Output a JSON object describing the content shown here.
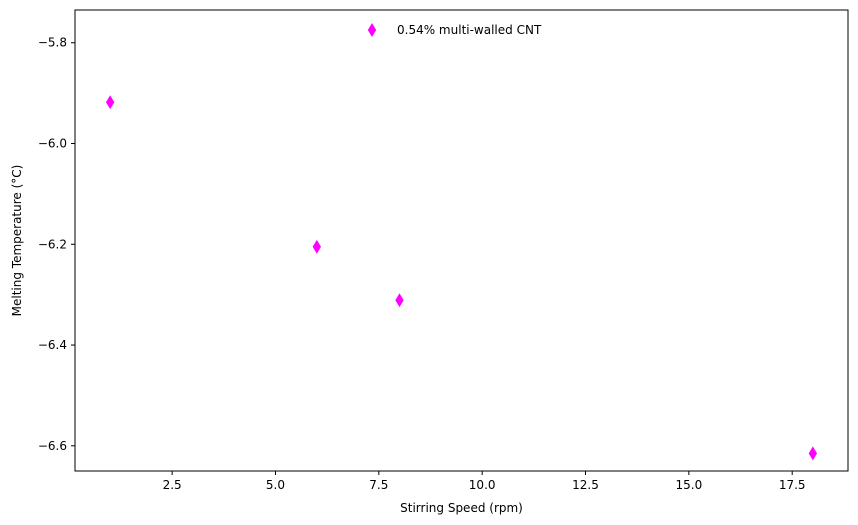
{
  "chart_data": {
    "type": "scatter",
    "title": "",
    "xlabel": "Stirring Speed (rpm)",
    "ylabel": "Melting Temperature (°C)",
    "xlim": [
      0.15,
      18.85
    ],
    "ylim": [
      -6.65,
      -5.735
    ],
    "xticks": [
      2.5,
      5.0,
      7.5,
      10.0,
      12.5,
      15.0,
      17.5
    ],
    "xtick_labels": [
      "2.5",
      "5.0",
      "7.5",
      "10.0",
      "12.5",
      "15.0",
      "17.5"
    ],
    "yticks": [
      -6.6,
      -6.4,
      -6.2,
      -6.0,
      -5.8
    ],
    "ytick_labels": [
      "−6.6",
      "−6.4",
      "−6.2",
      "−6.0",
      "−5.8"
    ],
    "grid": false,
    "legend_position": "top-center",
    "series": [
      {
        "name": "0.54% multi-walled CNT",
        "marker": "thin-diamond",
        "color": "#ff00ff",
        "x": [
          1,
          6,
          8,
          18
        ],
        "y": [
          -5.918,
          -6.205,
          -6.311,
          -6.615
        ]
      }
    ]
  }
}
